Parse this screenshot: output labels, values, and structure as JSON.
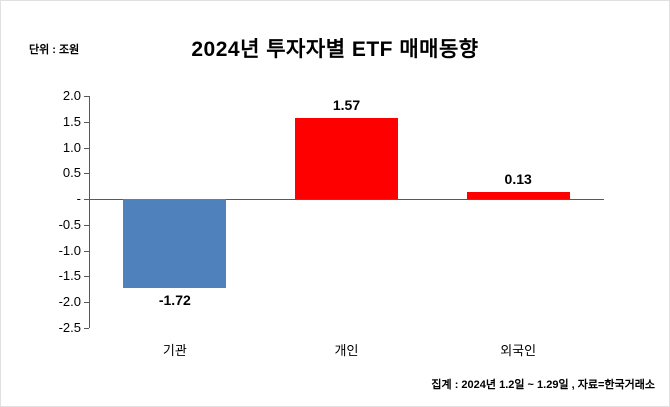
{
  "header": {
    "title": "2024년  투자자별 ETF  매매동향",
    "unit_label": "단위 : 조원"
  },
  "footer": {
    "caption": "집계 : 2024년 1.2일 ~ 1.29일 , 자료=한국거래소"
  },
  "chart_data": {
    "type": "bar",
    "title": "2024년 투자자별 ETF 매매동향",
    "ylabel": "단위 : 조원",
    "categories": [
      "기관",
      "개인",
      "외국인"
    ],
    "values": [
      -1.72,
      1.57,
      0.13
    ],
    "data_labels": [
      "-1.72",
      "1.57",
      "0.13"
    ],
    "colors": [
      "#4f81bd",
      "#ff0000",
      "#ff0000"
    ],
    "ylim": [
      -2.5,
      2.0
    ],
    "ytick_step": 0.5,
    "ytick_labels": [
      "2.0",
      "1.5",
      "1.0",
      "0.5",
      "-",
      "-0.5",
      "-1.0",
      "-1.5",
      "-2.0",
      "-2.5"
    ],
    "grid": false,
    "legend": "none",
    "source_note": "집계 : 2024년 1.2일 ~ 1.29일 , 자료=한국거래소"
  }
}
